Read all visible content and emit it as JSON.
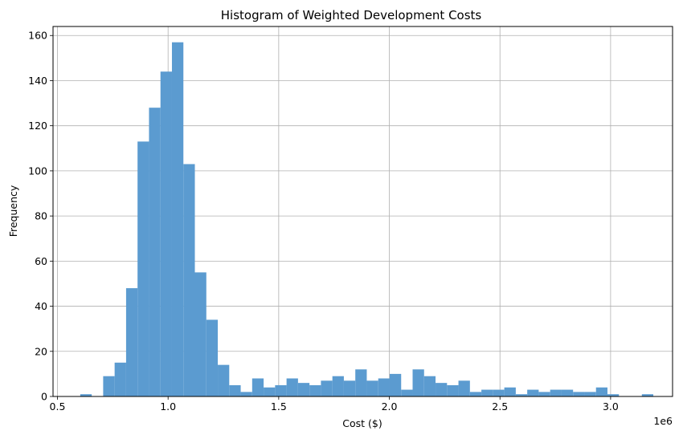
{
  "chart_data": {
    "type": "bar",
    "title": "Histogram of Weighted Development Costs",
    "xlabel": "Cost ($)",
    "ylabel": "Frequency",
    "x_offset_label": "1e6",
    "xlim": [
      0.48,
      3.28
    ],
    "ylim": [
      0,
      164
    ],
    "xticks": [
      0.5,
      1.0,
      1.5,
      2.0,
      2.5,
      3.0
    ],
    "xtick_labels": [
      "0.5",
      "1.0",
      "1.5",
      "2.0",
      "2.5",
      "3.0"
    ],
    "yticks": [
      0,
      20,
      40,
      60,
      80,
      100,
      120,
      140,
      160
    ],
    "ytick_labels": [
      "0",
      "20",
      "40",
      "60",
      "80",
      "100",
      "120",
      "140",
      "160"
    ],
    "grid": true,
    "bar_color": "#5b9bd0",
    "bin_start": 0.603,
    "bin_width": 0.0518,
    "values": [
      1,
      0,
      9,
      15,
      48,
      113,
      128,
      144,
      157,
      103,
      55,
      34,
      14,
      5,
      2,
      8,
      4,
      5,
      8,
      6,
      5,
      7,
      9,
      7,
      12,
      7,
      8,
      10,
      3,
      12,
      9,
      6,
      5,
      7,
      2,
      3,
      3,
      4,
      1,
      3,
      2,
      3,
      3,
      2,
      2,
      4,
      1,
      0,
      0,
      1
    ]
  }
}
